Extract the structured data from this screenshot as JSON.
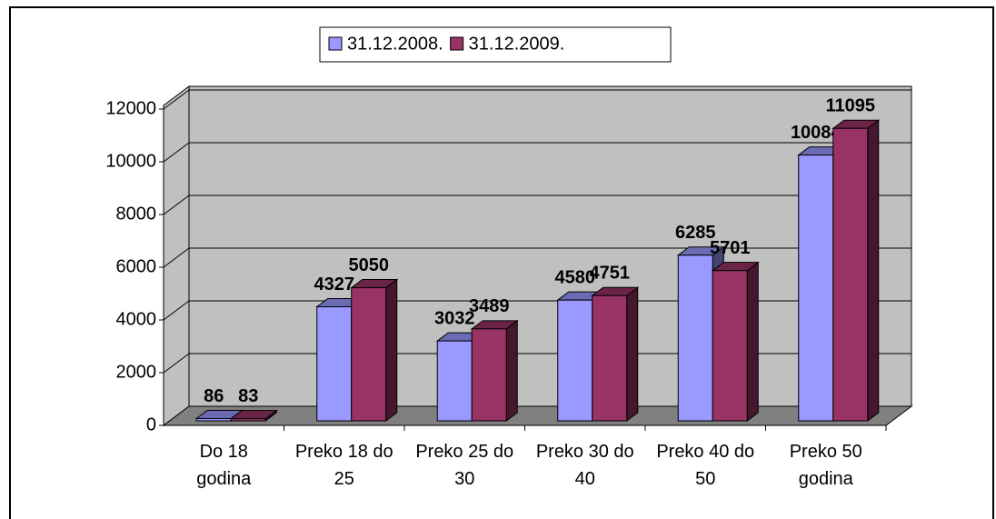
{
  "chart_data": {
    "type": "bar3d",
    "categories": [
      "Do 18 godina",
      "Preko 18 do 25",
      "Preko 25 do 30",
      "Preko 30 do 40",
      "Preko 40 do 50",
      "Preko 50 godina"
    ],
    "series": [
      {
        "name": "31.12.2008.",
        "color": "#9999ff",
        "values": [
          86,
          4327,
          3032,
          4580,
          6285,
          10084
        ]
      },
      {
        "name": "31.12.2009.",
        "color": "#993366",
        "values": [
          83,
          5050,
          3489,
          4751,
          5701,
          11095
        ]
      }
    ],
    "ylim": [
      0,
      12000
    ],
    "yticks": [
      0,
      2000,
      4000,
      6000,
      8000,
      10000,
      12000
    ],
    "grid": true,
    "legend": "top"
  }
}
